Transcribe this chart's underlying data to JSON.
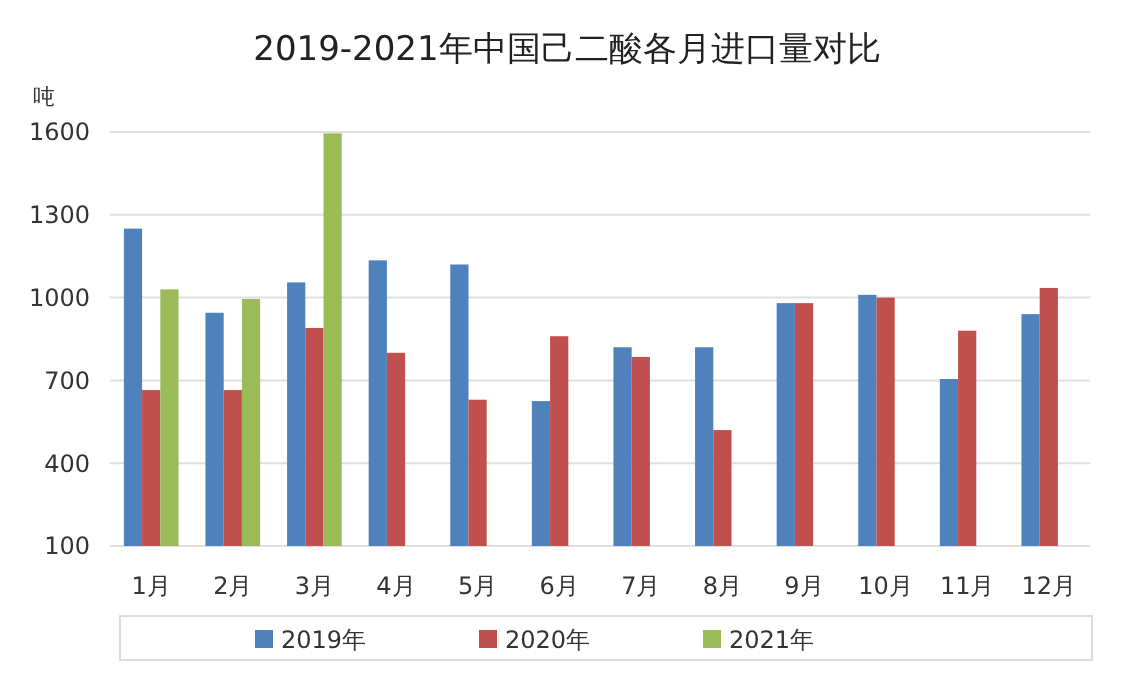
{
  "chart_data": {
    "type": "bar",
    "title": "2019-2021年中国己二酸各月进口量对比",
    "ylabel": "吨",
    "categories": [
      "1月",
      "2月",
      "3月",
      "4月",
      "5月",
      "6月",
      "7月",
      "8月",
      "9月",
      "10月",
      "11月",
      "12月"
    ],
    "series": [
      {
        "name": "2019年",
        "color": "#4f81bd",
        "values": [
          1250,
          945,
          1055,
          1135,
          1120,
          625,
          820,
          820,
          980,
          1010,
          705,
          940
        ]
      },
      {
        "name": "2020年",
        "color": "#c0504d",
        "values": [
          665,
          665,
          890,
          800,
          630,
          860,
          785,
          520,
          980,
          1000,
          880,
          1035
        ]
      },
      {
        "name": "2021年",
        "color": "#9bbb59",
        "values": [
          1030,
          995,
          1595,
          null,
          null,
          null,
          null,
          null,
          null,
          null,
          null,
          null
        ]
      }
    ],
    "ylim": [
      100,
      1600
    ],
    "yticks": [
      100,
      400,
      700,
      1000,
      1300,
      1600
    ],
    "grid": "y",
    "legend": "bottom"
  }
}
